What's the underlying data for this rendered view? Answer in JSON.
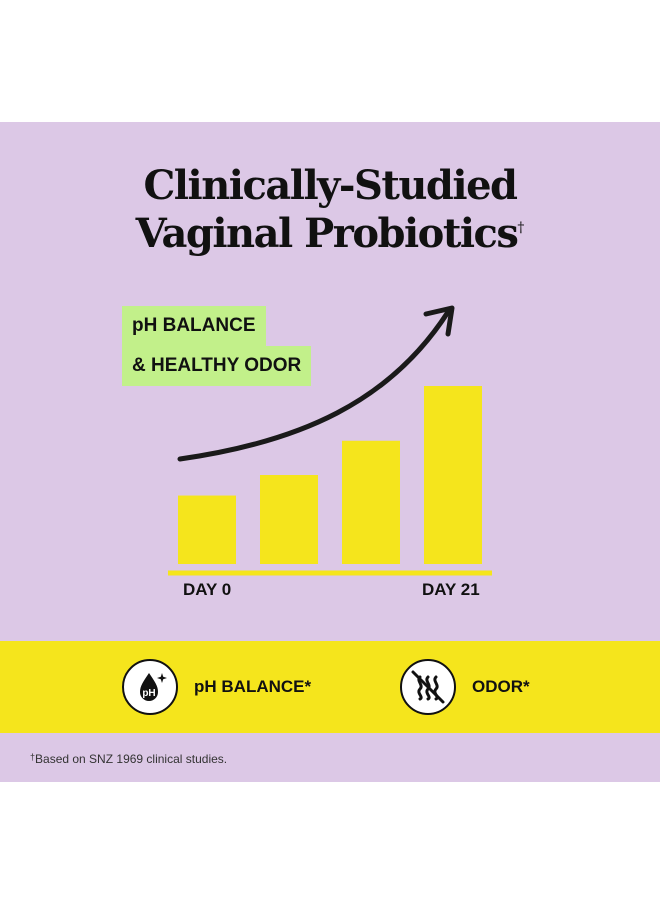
{
  "headline": {
    "line1": "Clinically-Studied",
    "line2": "Vaginal Probiotics",
    "dagger": "†"
  },
  "tag": {
    "line1": "pH BALANCE",
    "line2": "& HEALTHY ODOR"
  },
  "chart_data": {
    "type": "bar",
    "categories": [
      "",
      "",
      "",
      ""
    ],
    "values": [
      1,
      1.3,
      1.8,
      2.6
    ],
    "x_start_label": "DAY 0",
    "x_end_label": "DAY 21",
    "bar_color": "#f5e51c",
    "arrow": "upward trend arrow"
  },
  "benefits": [
    {
      "label": "pH BALANCE*",
      "icon": "ph-drop-icon"
    },
    {
      "label": "ODOR*",
      "icon": "no-odor-icon"
    }
  ],
  "footnote": {
    "dagger": "†",
    "text": "Based on SNZ 1969 clinical studies."
  },
  "colors": {
    "background": "#dcc8e6",
    "tag": "#c2f08a",
    "accent_yellow": "#f5e51c",
    "text": "#111111"
  }
}
